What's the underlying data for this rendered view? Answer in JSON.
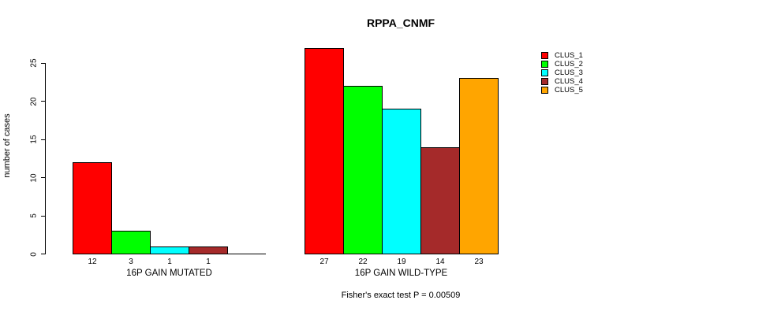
{
  "chart_data": {
    "type": "bar",
    "title": "RPPA_CNMF",
    "ylabel": "number of cases",
    "ylim": [
      0,
      27
    ],
    "yticks": [
      0,
      5,
      10,
      15,
      20,
      25
    ],
    "grid": false,
    "legend_position": "right",
    "categories": [
      "16P GAIN MUTATED",
      "16P GAIN WILD-TYPE"
    ],
    "series": [
      {
        "name": "CLUS_1",
        "color": "#ff0000",
        "values": [
          12,
          27
        ]
      },
      {
        "name": "CLUS_2",
        "color": "#00ff00",
        "values": [
          3,
          22
        ]
      },
      {
        "name": "CLUS_3",
        "color": "#00ffff",
        "values": [
          1,
          19
        ]
      },
      {
        "name": "CLUS_4",
        "color": "#a52a2a",
        "values": [
          1,
          14
        ]
      },
      {
        "name": "CLUS_5",
        "color": "#ffa500",
        "values": [
          0,
          23
        ]
      }
    ],
    "bar_value_labels_shown": true,
    "zero_bars_hidden": true,
    "annotation": "Fisher's exact test P = 0.00509"
  }
}
